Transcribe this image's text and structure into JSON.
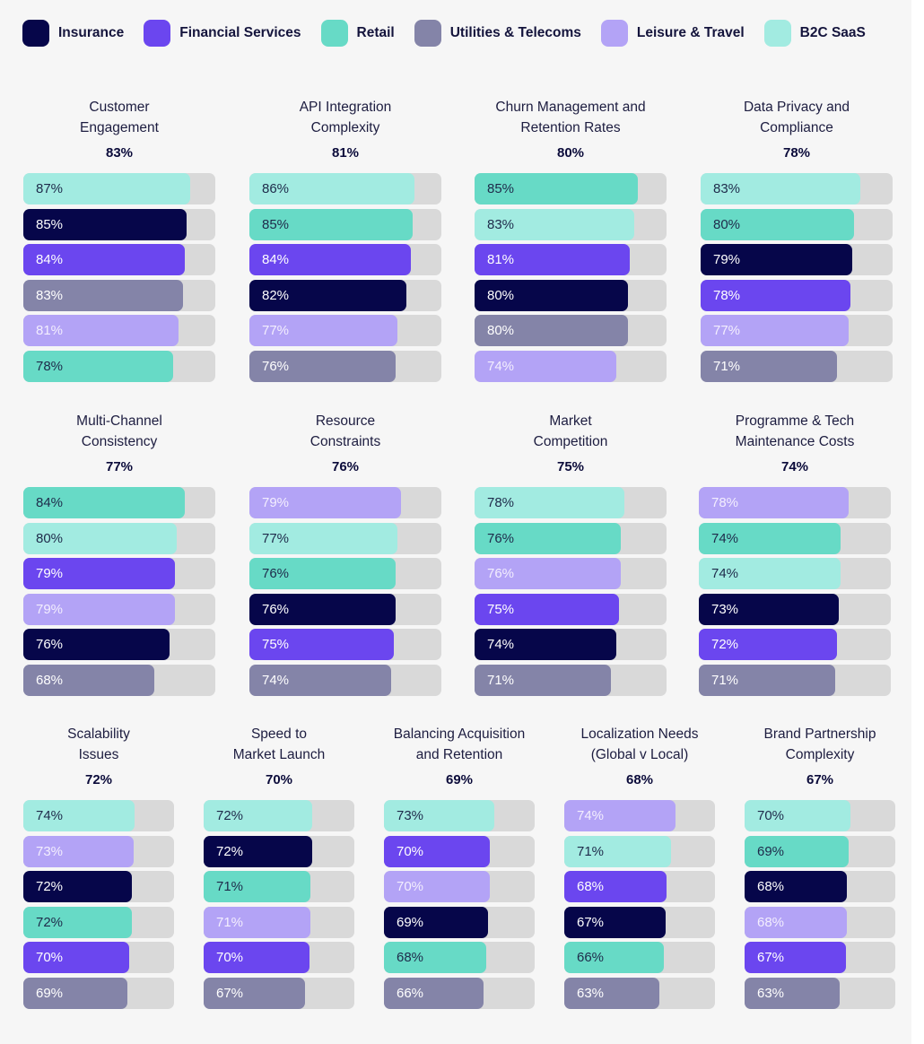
{
  "legend": [
    {
      "label": "Insurance",
      "color": "#06064a"
    },
    {
      "label": "Financial Services",
      "color": "#6b46ef"
    },
    {
      "label": "Retail",
      "color": "#67dac6"
    },
    {
      "label": "Utilities & Telecoms",
      "color": "#8484a8"
    },
    {
      "label": "Leisure & Travel",
      "color": "#b3a3f6"
    },
    {
      "label": "B2C SaaS",
      "color": "#a2ebe1"
    }
  ],
  "chart_data": {
    "type": "bar",
    "scale_max": 100,
    "series_colors": {
      "Insurance": "#06064a",
      "Financial Services": "#6b46ef",
      "Retail": "#67dac6",
      "Utilities & Telecoms": "#8484a8",
      "Leisure & Travel": "#b3a3f6",
      "B2C SaaS": "#a2ebe1"
    },
    "panels": [
      {
        "title": [
          "Customer",
          "Engagement"
        ],
        "overall": "83%",
        "bars": [
          {
            "series": "B2C SaaS",
            "value": 87
          },
          {
            "series": "Insurance",
            "value": 85
          },
          {
            "series": "Financial Services",
            "value": 84
          },
          {
            "series": "Utilities & Telecoms",
            "value": 83
          },
          {
            "series": "Leisure & Travel",
            "value": 81
          },
          {
            "series": "Retail",
            "value": 78
          }
        ]
      },
      {
        "title": [
          "API  Integration",
          "Complexity"
        ],
        "overall": "81%",
        "bars": [
          {
            "series": "B2C SaaS",
            "value": 86
          },
          {
            "series": "Retail",
            "value": 85
          },
          {
            "series": "Financial Services",
            "value": 84
          },
          {
            "series": "Insurance",
            "value": 82
          },
          {
            "series": "Leisure & Travel",
            "value": 77
          },
          {
            "series": "Utilities & Telecoms",
            "value": 76
          }
        ]
      },
      {
        "title": [
          "Churn Management and",
          "Retention Rates"
        ],
        "overall": "80%",
        "bars": [
          {
            "series": "Retail",
            "value": 85
          },
          {
            "series": "B2C SaaS",
            "value": 83
          },
          {
            "series": "Financial Services",
            "value": 81
          },
          {
            "series": "Insurance",
            "value": 80
          },
          {
            "series": "Utilities & Telecoms",
            "value": 80
          },
          {
            "series": "Leisure & Travel",
            "value": 74
          }
        ]
      },
      {
        "title": [
          "Data Privacy and",
          "Compliance"
        ],
        "overall": "78%",
        "bars": [
          {
            "series": "B2C SaaS",
            "value": 83
          },
          {
            "series": "Retail",
            "value": 80
          },
          {
            "series": "Insurance",
            "value": 79
          },
          {
            "series": "Financial Services",
            "value": 78
          },
          {
            "series": "Leisure & Travel",
            "value": 77
          },
          {
            "series": "Utilities & Telecoms",
            "value": 71
          }
        ]
      },
      {
        "title": [
          "Multi-Channel",
          "Consistency"
        ],
        "overall": "77%",
        "bars": [
          {
            "series": "Retail",
            "value": 84
          },
          {
            "series": "B2C SaaS",
            "value": 80
          },
          {
            "series": "Financial Services",
            "value": 79
          },
          {
            "series": "Leisure & Travel",
            "value": 79
          },
          {
            "series": "Insurance",
            "value": 76
          },
          {
            "series": "Utilities & Telecoms",
            "value": 68
          }
        ]
      },
      {
        "title": [
          "Resource",
          "Constraints"
        ],
        "overall": "76%",
        "bars": [
          {
            "series": "Leisure & Travel",
            "value": 79
          },
          {
            "series": "B2C SaaS",
            "value": 77
          },
          {
            "series": "Retail",
            "value": 76
          },
          {
            "series": "Insurance",
            "value": 76
          },
          {
            "series": "Financial Services",
            "value": 75
          },
          {
            "series": "Utilities & Telecoms",
            "value": 74
          }
        ]
      },
      {
        "title": [
          "Market",
          "Competition"
        ],
        "overall": "75%",
        "bars": [
          {
            "series": "B2C SaaS",
            "value": 78
          },
          {
            "series": "Retail",
            "value": 76
          },
          {
            "series": "Leisure & Travel",
            "value": 76
          },
          {
            "series": "Financial Services",
            "value": 75
          },
          {
            "series": "Insurance",
            "value": 74
          },
          {
            "series": "Utilities & Telecoms",
            "value": 71
          }
        ]
      },
      {
        "title": [
          "Programme & Tech",
          "Maintenance Costs"
        ],
        "overall": "74%",
        "bars": [
          {
            "series": "Leisure & Travel",
            "value": 78
          },
          {
            "series": "Retail",
            "value": 74
          },
          {
            "series": "B2C SaaS",
            "value": 74
          },
          {
            "series": "Insurance",
            "value": 73
          },
          {
            "series": "Financial Services",
            "value": 72
          },
          {
            "series": "Utilities & Telecoms",
            "value": 71
          }
        ]
      },
      {
        "title": [
          "Scalability",
          "Issues"
        ],
        "overall": "72%",
        "bars": [
          {
            "series": "B2C SaaS",
            "value": 74
          },
          {
            "series": "Leisure & Travel",
            "value": 73
          },
          {
            "series": "Insurance",
            "value": 72
          },
          {
            "series": "Retail",
            "value": 72
          },
          {
            "series": "Financial Services",
            "value": 70
          },
          {
            "series": "Utilities & Telecoms",
            "value": 69
          }
        ]
      },
      {
        "title": [
          "Speed to",
          "Market Launch"
        ],
        "overall": "70%",
        "bars": [
          {
            "series": "B2C SaaS",
            "value": 72
          },
          {
            "series": "Insurance",
            "value": 72
          },
          {
            "series": "Retail",
            "value": 71
          },
          {
            "series": "Leisure & Travel",
            "value": 71
          },
          {
            "series": "Financial Services",
            "value": 70
          },
          {
            "series": "Utilities & Telecoms",
            "value": 67
          }
        ]
      },
      {
        "title": [
          "Balancing Acquisition",
          "and Retention"
        ],
        "overall": "69%",
        "bars": [
          {
            "series": "B2C SaaS",
            "value": 73
          },
          {
            "series": "Financial Services",
            "value": 70
          },
          {
            "series": "Leisure & Travel",
            "value": 70
          },
          {
            "series": "Insurance",
            "value": 69
          },
          {
            "series": "Retail",
            "value": 68
          },
          {
            "series": "Utilities & Telecoms",
            "value": 66
          }
        ]
      },
      {
        "title": [
          "Localization Needs",
          "(Global v Local)"
        ],
        "overall": "68%",
        "bars": [
          {
            "series": "Leisure & Travel",
            "value": 74
          },
          {
            "series": "B2C SaaS",
            "value": 71
          },
          {
            "series": "Financial Services",
            "value": 68
          },
          {
            "series": "Insurance",
            "value": 67
          },
          {
            "series": "Retail",
            "value": 66
          },
          {
            "series": "Utilities & Telecoms",
            "value": 63
          }
        ]
      },
      {
        "title": [
          "Brand Partnership",
          "Complexity"
        ],
        "overall": "67%",
        "bars": [
          {
            "series": "B2C SaaS",
            "value": 70
          },
          {
            "series": "Retail",
            "value": 69
          },
          {
            "series": "Insurance",
            "value": 68
          },
          {
            "series": "Leisure & Travel",
            "value": 68
          },
          {
            "series": "Financial Services",
            "value": 67
          },
          {
            "series": "Utilities & Telecoms",
            "value": 63
          }
        ]
      }
    ]
  }
}
